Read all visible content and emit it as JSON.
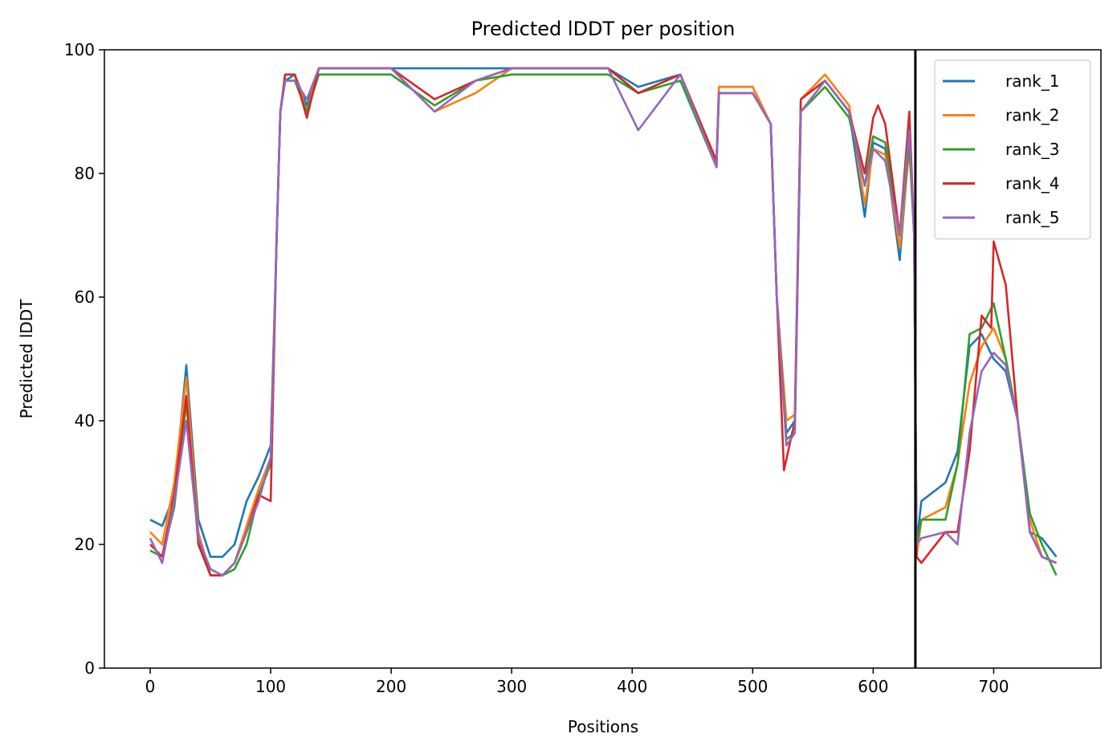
{
  "chart_data": {
    "type": "line",
    "title": "Predicted lDDT per position",
    "xlabel": "Positions",
    "ylabel": "Predicted lDDT",
    "xlim": [
      -38,
      789
    ],
    "ylim": [
      0,
      100
    ],
    "xticks": [
      0,
      100,
      200,
      300,
      400,
      500,
      600,
      700
    ],
    "yticks": [
      0,
      20,
      40,
      60,
      80,
      100
    ],
    "grid": false,
    "legend_position": "top-right",
    "vline": 635,
    "series": [
      {
        "name": "rank_1",
        "color": "#1f77b4",
        "x": [
          0,
          10,
          20,
          30,
          40,
          50,
          60,
          70,
          80,
          90,
          100,
          105,
          108,
          112,
          120,
          130,
          140,
          160,
          200,
          236,
          270,
          300,
          340,
          380,
          405,
          440,
          470,
          472,
          500,
          515,
          520,
          528,
          535,
          540,
          560,
          580,
          593,
          600,
          610,
          622,
          630,
          634,
          636,
          640,
          660,
          670,
          680,
          690,
          700,
          710,
          720,
          730,
          740,
          752
        ],
        "y": [
          24,
          23,
          28,
          49,
          24,
          18,
          18,
          20,
          27,
          31,
          36,
          70,
          90,
          95,
          96,
          91,
          97,
          97,
          97,
          97,
          97,
          97,
          97,
          97,
          94,
          96,
          82,
          94,
          94,
          88,
          60,
          38,
          40,
          92,
          95,
          90,
          73,
          85,
          84,
          66,
          85,
          70,
          20,
          27,
          30,
          35,
          52,
          54,
          50,
          48,
          40,
          22,
          21,
          18
        ]
      },
      {
        "name": "rank_2",
        "color": "#ff7f0e",
        "x": [
          0,
          10,
          20,
          30,
          40,
          50,
          60,
          70,
          80,
          90,
          100,
          105,
          108,
          112,
          120,
          130,
          140,
          160,
          200,
          236,
          270,
          300,
          340,
          380,
          405,
          440,
          470,
          472,
          500,
          515,
          520,
          528,
          535,
          540,
          560,
          580,
          593,
          600,
          610,
          622,
          630,
          634,
          636,
          640,
          660,
          670,
          680,
          690,
          700,
          710,
          720,
          730,
          740,
          752
        ],
        "y": [
          22,
          20,
          30,
          47,
          22,
          15,
          15,
          17,
          23,
          29,
          34,
          70,
          90,
          96,
          96,
          90,
          97,
          97,
          97,
          90,
          93,
          97,
          97,
          97,
          93,
          96,
          82,
          94,
          94,
          88,
          60,
          40,
          41,
          92,
          96,
          91,
          75,
          84,
          83,
          68,
          84,
          70,
          18,
          24,
          26,
          33,
          46,
          52,
          55,
          50,
          40,
          24,
          18,
          17
        ]
      },
      {
        "name": "rank_3",
        "color": "#2ca02c",
        "x": [
          0,
          10,
          20,
          30,
          40,
          50,
          60,
          70,
          80,
          90,
          100,
          105,
          108,
          112,
          120,
          130,
          140,
          160,
          200,
          236,
          270,
          300,
          340,
          380,
          405,
          440,
          470,
          472,
          500,
          515,
          520,
          528,
          535,
          540,
          560,
          580,
          593,
          600,
          610,
          622,
          630,
          634,
          636,
          640,
          660,
          670,
          680,
          690,
          700,
          710,
          720,
          730,
          740,
          752
        ],
        "y": [
          19,
          18,
          26,
          43,
          21,
          15,
          15,
          16,
          20,
          28,
          33,
          70,
          90,
          95,
          95,
          90,
          96,
          96,
          96,
          91,
          95,
          96,
          96,
          96,
          93,
          95,
          81,
          93,
          93,
          88,
          60,
          37,
          38,
          90,
          94,
          89,
          78,
          86,
          85,
          70,
          85,
          70,
          20,
          24,
          24,
          33,
          54,
          55,
          59,
          50,
          40,
          25,
          20,
          15
        ]
      },
      {
        "name": "rank_4",
        "color": "#d62728",
        "x": [
          0,
          10,
          20,
          30,
          40,
          50,
          60,
          70,
          80,
          90,
          100,
          105,
          108,
          112,
          120,
          130,
          140,
          160,
          200,
          236,
          270,
          300,
          340,
          380,
          405,
          440,
          470,
          472,
          500,
          515,
          520,
          526,
          535,
          540,
          560,
          580,
          593,
          600,
          604,
          610,
          622,
          630,
          634,
          636,
          640,
          660,
          670,
          680,
          690,
          698,
          700,
          710,
          720,
          730,
          740,
          752
        ],
        "y": [
          20,
          18,
          28,
          44,
          20,
          15,
          15,
          17,
          22,
          28,
          27,
          70,
          90,
          96,
          96,
          89,
          97,
          97,
          97,
          92,
          95,
          97,
          97,
          97,
          93,
          96,
          82,
          93,
          93,
          88,
          60,
          32,
          40,
          92,
          95,
          90,
          80,
          89,
          91,
          88,
          70,
          90,
          70,
          18,
          17,
          22,
          22,
          35,
          57,
          55,
          69,
          62,
          40,
          22,
          18,
          17
        ]
      },
      {
        "name": "rank_5",
        "color": "#9467bd",
        "x": [
          0,
          10,
          20,
          30,
          40,
          50,
          60,
          70,
          80,
          90,
          100,
          105,
          108,
          112,
          120,
          130,
          140,
          160,
          200,
          236,
          270,
          300,
          340,
          380,
          405,
          440,
          470,
          472,
          500,
          515,
          520,
          528,
          535,
          540,
          560,
          580,
          593,
          600,
          610,
          622,
          630,
          634,
          636,
          640,
          660,
          670,
          680,
          690,
          700,
          710,
          720,
          730,
          740,
          752
        ],
        "y": [
          21,
          17,
          27,
          40,
          21,
          16,
          15,
          17,
          22,
          27,
          34,
          70,
          90,
          95,
          95,
          92,
          97,
          97,
          97,
          90,
          95,
          97,
          97,
          97,
          87,
          96,
          81,
          93,
          93,
          88,
          60,
          36,
          38,
          90,
          95,
          90,
          78,
          84,
          82,
          70,
          87,
          70,
          20,
          21,
          22,
          20,
          38,
          48,
          51,
          49,
          40,
          22,
          18,
          17
        ]
      }
    ]
  }
}
